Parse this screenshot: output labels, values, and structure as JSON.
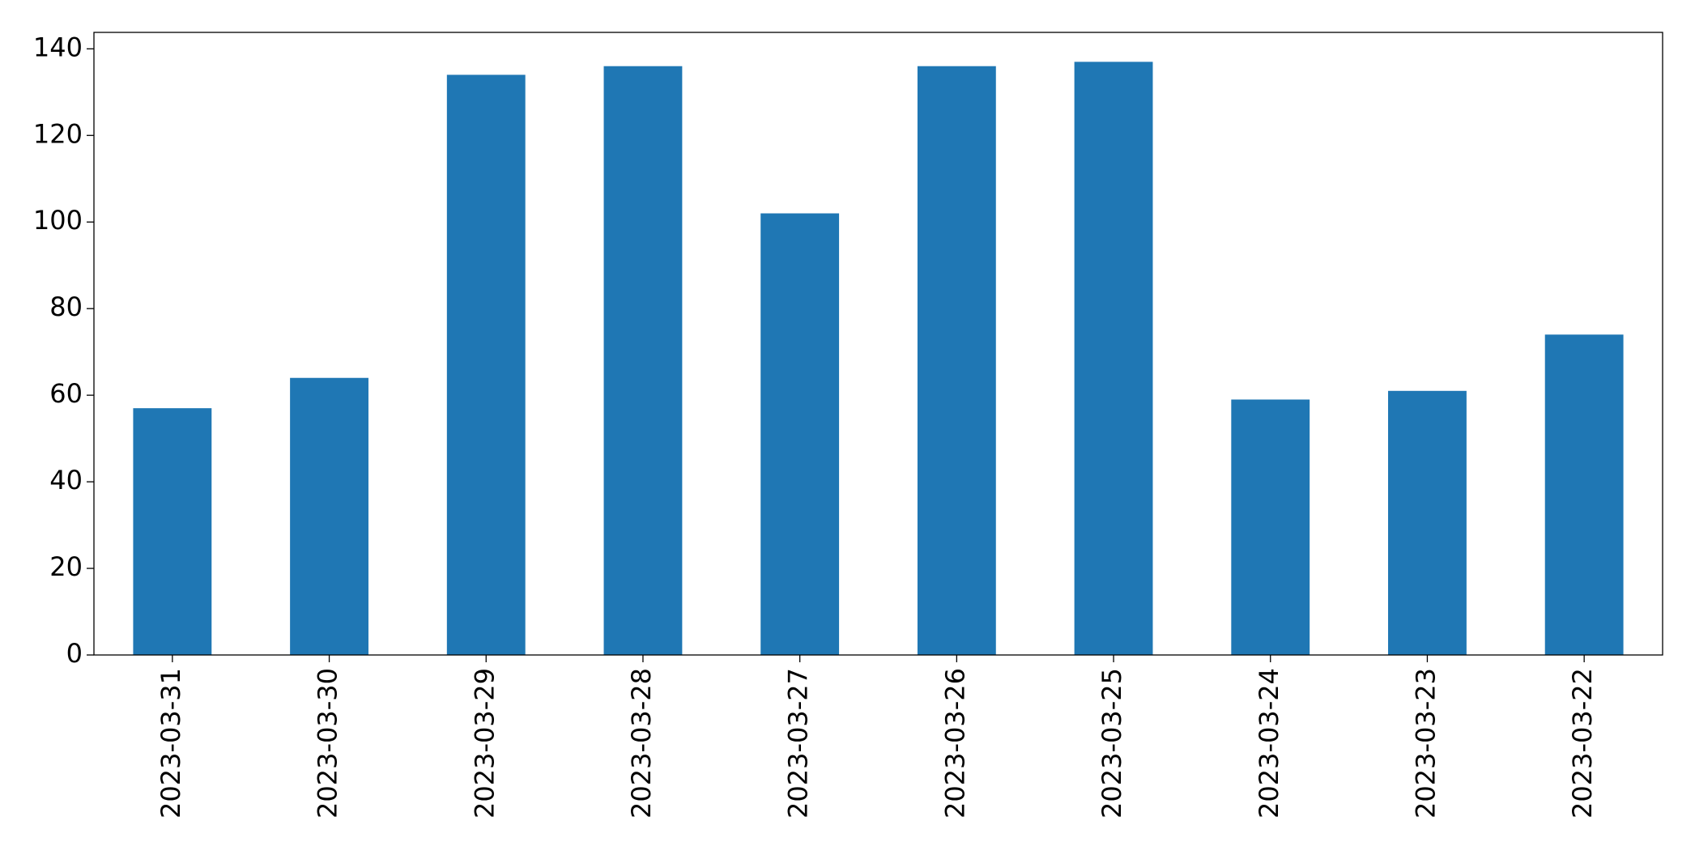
{
  "chart_data": {
    "type": "bar",
    "categories": [
      "2023-03-31",
      "2023-03-30",
      "2023-03-29",
      "2023-03-28",
      "2023-03-27",
      "2023-03-26",
      "2023-03-25",
      "2023-03-24",
      "2023-03-23",
      "2023-03-22"
    ],
    "values": [
      57,
      64,
      134,
      136,
      102,
      136,
      137,
      59,
      61,
      74
    ],
    "color": "#1f77b4",
    "ylim": [
      0,
      143.8
    ],
    "yticks": [
      0,
      20,
      40,
      60,
      80,
      100,
      120,
      140
    ],
    "grid": false
  }
}
